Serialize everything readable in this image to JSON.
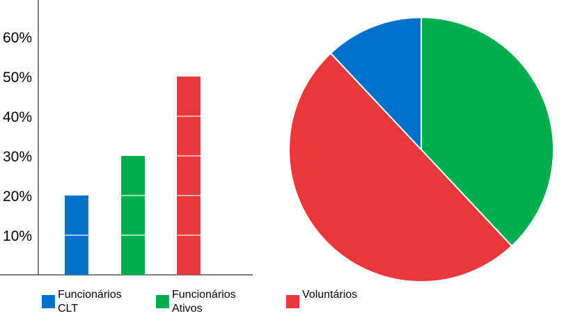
{
  "chart_data": [
    {
      "type": "bar",
      "categories": [
        "Funcionários\nCLT",
        "Funcionários\nAtivos",
        "Voluntários"
      ],
      "values": [
        20,
        30,
        50
      ],
      "colors": [
        "#0070c9",
        "#00b050",
        "#e8383b"
      ],
      "yticks": [
        "10%",
        "20%",
        "30%",
        "40%",
        "50%",
        "60%"
      ],
      "ylim": [
        0,
        70
      ],
      "grid": false,
      "legend": "bottom"
    },
    {
      "type": "pie",
      "labels": [
        "Funcionários CLT",
        "Funcionários Ativos",
        "Voluntários"
      ],
      "values": [
        12,
        38,
        50
      ],
      "colors": [
        "#0070c9",
        "#00b050",
        "#e8383b"
      ],
      "legend": "none"
    }
  ]
}
